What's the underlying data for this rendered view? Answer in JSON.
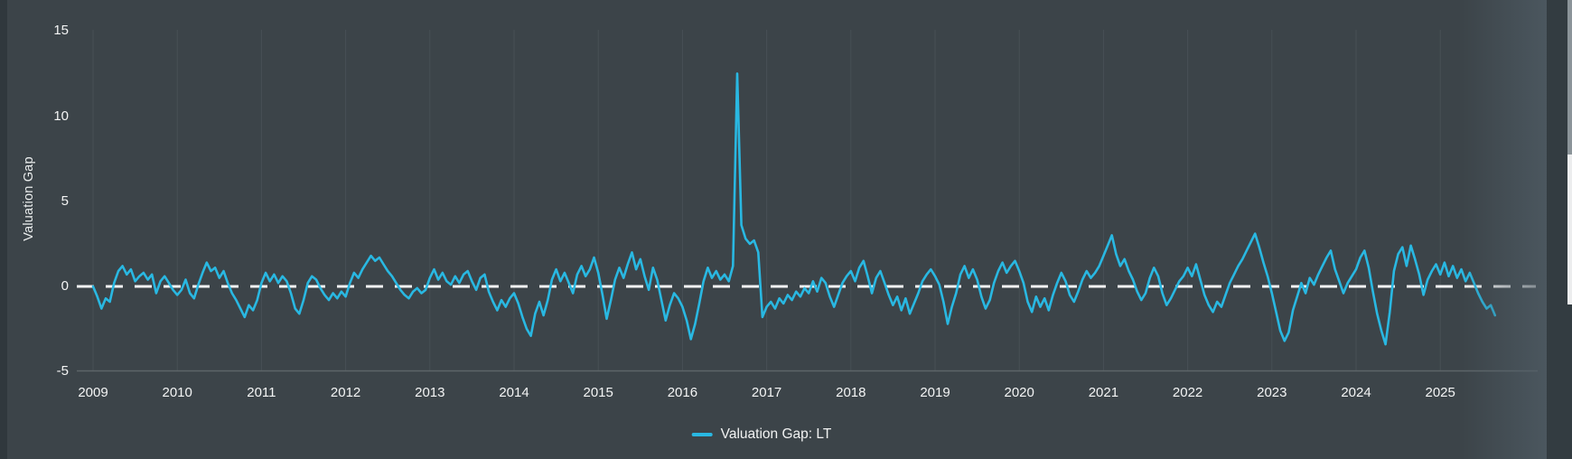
{
  "chart": {
    "y_axis_title": "Valuation Gap",
    "legend_label": "Valuation Gap: LT",
    "series_color": "#29b8e2",
    "zero_line_color": "#f2f2f2",
    "grid_color": "#475055",
    "axis_line_color": "#5d6569",
    "background_color": "#3c4449"
  },
  "chart_data": {
    "type": "line",
    "title": "",
    "xlabel": "",
    "ylabel": "Valuation Gap",
    "legend_position": "bottom-center",
    "grid": "vertical-only",
    "ylim": [
      -5,
      15
    ],
    "xlim": [
      2008.8,
      2026.15
    ],
    "y_ticks": [
      15,
      10,
      5,
      0,
      -5
    ],
    "x_ticks": [
      2009,
      2010,
      2011,
      2012,
      2013,
      2014,
      2015,
      2016,
      2017,
      2018,
      2019,
      2020,
      2021,
      2022,
      2023,
      2024,
      2025
    ],
    "zero_line": {
      "y": 0,
      "style": "dashed",
      "color": "#f2f2f2"
    },
    "series": [
      {
        "name": "Valuation Gap: LT",
        "color": "#29b8e2",
        "x_start": 2009.0,
        "x_step": 0.05,
        "values": [
          0.0,
          -0.6,
          -1.3,
          -0.7,
          -0.9,
          0.2,
          0.9,
          1.2,
          0.7,
          1.0,
          0.3,
          0.6,
          0.8,
          0.4,
          0.7,
          -0.4,
          0.3,
          0.6,
          0.2,
          -0.2,
          -0.5,
          -0.2,
          0.4,
          -0.4,
          -0.7,
          0.1,
          0.8,
          1.4,
          0.9,
          1.1,
          0.5,
          0.9,
          0.2,
          -0.4,
          -0.8,
          -1.3,
          -1.8,
          -1.1,
          -1.4,
          -0.8,
          0.2,
          0.8,
          0.3,
          0.7,
          0.2,
          0.6,
          0.3,
          -0.4,
          -1.3,
          -1.6,
          -0.8,
          0.2,
          0.6,
          0.4,
          -0.1,
          -0.5,
          -0.8,
          -0.4,
          -0.7,
          -0.3,
          -0.6,
          0.2,
          0.8,
          0.5,
          1.0,
          1.4,
          1.8,
          1.5,
          1.7,
          1.3,
          0.9,
          0.6,
          0.2,
          -0.2,
          -0.5,
          -0.7,
          -0.3,
          -0.1,
          -0.4,
          -0.2,
          0.5,
          1.0,
          0.4,
          0.8,
          0.3,
          0.1,
          0.6,
          0.2,
          0.7,
          0.9,
          0.3,
          -0.2,
          0.5,
          0.7,
          -0.3,
          -0.9,
          -1.4,
          -0.8,
          -1.2,
          -0.7,
          -0.4,
          -1.0,
          -1.8,
          -2.5,
          -2.9,
          -1.6,
          -0.9,
          -1.7,
          -0.8,
          0.4,
          1.0,
          0.3,
          0.8,
          0.2,
          -0.4,
          0.7,
          1.2,
          0.6,
          1.0,
          1.7,
          0.8,
          -0.5,
          -1.9,
          -0.8,
          0.4,
          1.1,
          0.5,
          1.3,
          2.0,
          1.0,
          1.6,
          0.6,
          -0.2,
          1.1,
          0.4,
          -0.8,
          -2.0,
          -1.1,
          -0.4,
          -0.7,
          -1.2,
          -2.0,
          -3.1,
          -2.2,
          -1.0,
          0.3,
          1.1,
          0.5,
          0.9,
          0.4,
          0.7,
          0.3,
          1.2,
          12.5,
          3.6,
          2.8,
          2.5,
          2.7,
          2.0,
          -1.8,
          -1.2,
          -0.9,
          -1.3,
          -0.7,
          -1.0,
          -0.5,
          -0.8,
          -0.3,
          -0.6,
          -0.1,
          -0.4,
          0.3,
          -0.3,
          0.5,
          0.2,
          -0.6,
          -1.2,
          -0.5,
          0.2,
          0.6,
          0.9,
          0.3,
          1.1,
          1.5,
          0.6,
          -0.4,
          0.5,
          0.9,
          0.2,
          -0.5,
          -1.1,
          -0.6,
          -1.4,
          -0.7,
          -1.6,
          -1.0,
          -0.4,
          0.3,
          0.7,
          1.0,
          0.6,
          0.1,
          -0.9,
          -2.2,
          -1.2,
          -0.4,
          0.7,
          1.2,
          0.5,
          1.0,
          0.4,
          -0.6,
          -1.3,
          -0.8,
          0.2,
          0.9,
          1.4,
          0.8,
          1.2,
          1.5,
          0.9,
          0.2,
          -0.9,
          -1.5,
          -0.6,
          -1.2,
          -0.7,
          -1.4,
          -0.5,
          0.2,
          0.8,
          0.3,
          -0.5,
          -0.9,
          -0.3,
          0.4,
          0.9,
          0.5,
          0.8,
          1.2,
          1.8,
          2.4,
          3.0,
          1.9,
          1.2,
          1.6,
          0.9,
          0.4,
          -0.3,
          -0.8,
          -0.4,
          0.5,
          1.1,
          0.6,
          -0.4,
          -1.1,
          -0.7,
          -0.2,
          0.3,
          0.6,
          1.1,
          0.6,
          1.3,
          0.4,
          -0.5,
          -1.1,
          -1.5,
          -0.9,
          -1.2,
          -0.5,
          0.2,
          0.7,
          1.2,
          1.6,
          2.1,
          2.6,
          3.1,
          2.3,
          1.4,
          0.6,
          -0.4,
          -1.5,
          -2.6,
          -3.2,
          -2.7,
          -1.4,
          -0.6,
          0.2,
          -0.4,
          0.5,
          0.1,
          0.7,
          1.2,
          1.7,
          2.1,
          1.0,
          0.3,
          -0.4,
          0.2,
          0.6,
          1.0,
          1.7,
          2.1,
          1.1,
          -0.3,
          -1.6,
          -2.6,
          -3.4,
          -1.5,
          0.9,
          1.9,
          2.3,
          1.2,
          2.4,
          1.6,
          0.7,
          -0.5,
          0.4,
          0.9,
          1.3,
          0.7,
          1.4,
          0.6,
          1.2,
          0.5,
          1.0,
          0.3,
          0.8,
          0.2,
          -0.4,
          -0.9,
          -1.3,
          -1.1,
          -1.7
        ]
      }
    ]
  }
}
